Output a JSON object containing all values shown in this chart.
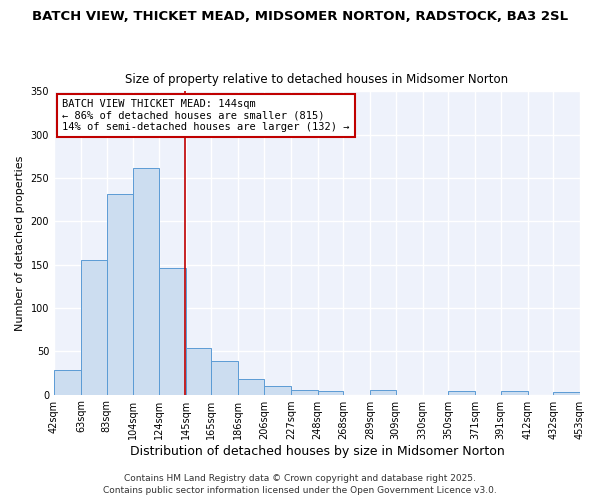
{
  "title": "BATCH VIEW, THICKET MEAD, MIDSOMER NORTON, RADSTOCK, BA3 2SL",
  "subtitle": "Size of property relative to detached houses in Midsomer Norton",
  "xlabel": "Distribution of detached houses by size in Midsomer Norton",
  "ylabel": "Number of detached properties",
  "bin_labels": [
    "42sqm",
    "63sqm",
    "83sqm",
    "104sqm",
    "124sqm",
    "145sqm",
    "165sqm",
    "186sqm",
    "206sqm",
    "227sqm",
    "248sqm",
    "268sqm",
    "289sqm",
    "309sqm",
    "330sqm",
    "350sqm",
    "371sqm",
    "391sqm",
    "412sqm",
    "432sqm",
    "453sqm"
  ],
  "bar_values": [
    28,
    155,
    232,
    261,
    146,
    54,
    39,
    18,
    10,
    5,
    4,
    0,
    5,
    0,
    0,
    4,
    0,
    4,
    0,
    3
  ],
  "bin_edges": [
    42,
    63,
    83,
    104,
    124,
    145,
    165,
    186,
    206,
    227,
    248,
    268,
    289,
    309,
    330,
    350,
    371,
    391,
    412,
    432,
    453
  ],
  "bar_color": "#ccddf0",
  "bar_edge_color": "#5b9bd5",
  "vline_x": 144,
  "vline_color": "#c00000",
  "annotation_box_text": "BATCH VIEW THICKET MEAD: 144sqm\n← 86% of detached houses are smaller (815)\n14% of semi-detached houses are larger (132) →",
  "annotation_box_color": "#c00000",
  "ylim": [
    0,
    350
  ],
  "yticks": [
    0,
    50,
    100,
    150,
    200,
    250,
    300,
    350
  ],
  "background_color": "#eef2fb",
  "grid_color": "#ffffff",
  "footer1": "Contains HM Land Registry data © Crown copyright and database right 2025.",
  "footer2": "Contains public sector information licensed under the Open Government Licence v3.0.",
  "title_fontsize": 9.5,
  "subtitle_fontsize": 8.5,
  "xlabel_fontsize": 9,
  "ylabel_fontsize": 8,
  "tick_fontsize": 7,
  "annotation_fontsize": 7.5,
  "footer_fontsize": 6.5
}
